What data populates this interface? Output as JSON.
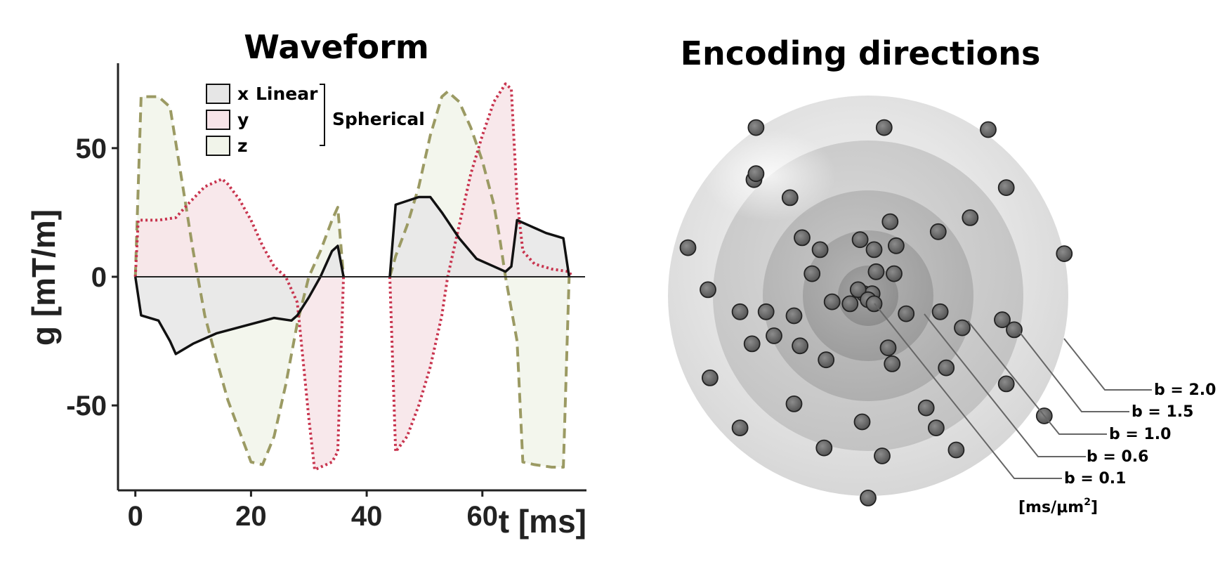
{
  "chart_data": [
    {
      "type": "line",
      "title": "Waveform",
      "xlabel": "t [ms]",
      "ylabel": "g [mT/m]",
      "xlim": [
        -3,
        78
      ],
      "ylim": [
        -83,
        83
      ],
      "xticks": [
        0,
        20,
        40,
        60
      ],
      "yticks": [
        50,
        0,
        -50
      ],
      "xtick_labels": [
        "0",
        "20",
        "40",
        "60"
      ],
      "ytick_labels": [
        "50",
        "0",
        "-50"
      ],
      "zero_line": true,
      "legend": {
        "placement": "top-center",
        "entries": [
          "x",
          "y",
          "z"
        ],
        "group_label_x": "Linear",
        "group_label_all": "Spherical"
      },
      "series": [
        {
          "name": "x",
          "style": "solid",
          "color": "#111111",
          "fill": "#e6e6e6",
          "segments": [
            [
              [
                0,
                0
              ],
              [
                1,
                -15
              ],
              [
                4,
                -17
              ],
              [
                6,
                -25
              ],
              [
                7,
                -30
              ],
              [
                10,
                -26
              ],
              [
                14,
                -22
              ],
              [
                19,
                -19
              ],
              [
                24,
                -16
              ],
              [
                27,
                -17
              ],
              [
                28,
                -15
              ],
              [
                30,
                -8
              ],
              [
                32,
                0
              ],
              [
                34,
                10
              ],
              [
                35,
                12
              ],
              [
                36,
                0
              ]
            ],
            [
              [
                44,
                0
              ],
              [
                45,
                28
              ],
              [
                49,
                31
              ],
              [
                51,
                31
              ],
              [
                53,
                25
              ],
              [
                56,
                15
              ],
              [
                59,
                7
              ],
              [
                62,
                4
              ],
              [
                64,
                2
              ],
              [
                65,
                4
              ],
              [
                66,
                22
              ],
              [
                68,
                20
              ],
              [
                71,
                17
              ],
              [
                74,
                15
              ],
              [
                75,
                0
              ]
            ]
          ]
        },
        {
          "name": "y",
          "style": "dotted",
          "color": "#c8344e",
          "fill": "#f7e4e8",
          "segments": [
            [
              [
                0,
                0
              ],
              [
                0.5,
                22
              ],
              [
                4,
                22
              ],
              [
                7,
                23
              ],
              [
                9,
                28
              ],
              [
                12,
                35
              ],
              [
                15,
                38
              ],
              [
                16,
                36
              ],
              [
                18,
                30
              ],
              [
                20,
                22
              ],
              [
                22,
                12
              ],
              [
                24,
                4
              ],
              [
                26,
                0
              ],
              [
                28,
                -10
              ],
              [
                30,
                -55
              ],
              [
                31,
                -75
              ],
              [
                32,
                -74
              ],
              [
                34,
                -72
              ],
              [
                35,
                -68
              ],
              [
                36,
                0
              ]
            ],
            [
              [
                44,
                0
              ],
              [
                45,
                -68
              ],
              [
                47,
                -62
              ],
              [
                49,
                -50
              ],
              [
                51,
                -35
              ],
              [
                53,
                -15
              ],
              [
                54,
                0
              ],
              [
                56,
                20
              ],
              [
                58,
                40
              ],
              [
                60,
                55
              ],
              [
                62,
                68
              ],
              [
                64,
                75
              ],
              [
                65,
                73
              ],
              [
                66,
                30
              ],
              [
                67,
                10
              ],
              [
                69,
                5
              ],
              [
                72,
                3
              ],
              [
                75,
                2
              ],
              [
                75.5,
                0
              ]
            ]
          ]
        },
        {
          "name": "z",
          "style": "dashed",
          "color": "#9b9a63",
          "fill": "#f1f4ea",
          "segments": [
            [
              [
                0,
                0
              ],
              [
                1,
                70
              ],
              [
                4,
                70
              ],
              [
                6,
                66
              ],
              [
                8,
                38
              ],
              [
                10,
                10
              ],
              [
                12,
                -15
              ],
              [
                14,
                -32
              ],
              [
                16,
                -48
              ],
              [
                18,
                -60
              ],
              [
                20,
                -72
              ],
              [
                22,
                -73
              ],
              [
                24,
                -62
              ],
              [
                26,
                -42
              ],
              [
                28,
                -18
              ],
              [
                30,
                0
              ],
              [
                32,
                10
              ],
              [
                34,
                22
              ],
              [
                35,
                27
              ],
              [
                36,
                0
              ]
            ],
            [
              [
                44,
                0
              ],
              [
                45,
                8
              ],
              [
                47,
                20
              ],
              [
                49,
                35
              ],
              [
                51,
                55
              ],
              [
                53,
                70
              ],
              [
                54,
                72
              ],
              [
                56,
                68
              ],
              [
                58,
                58
              ],
              [
                60,
                45
              ],
              [
                62,
                28
              ],
              [
                63,
                15
              ],
              [
                64,
                0
              ],
              [
                66,
                -25
              ],
              [
                67,
                -72
              ],
              [
                69,
                -73
              ],
              [
                72,
                -74
              ],
              [
                74,
                -74
              ],
              [
                75,
                0
              ]
            ]
          ]
        }
      ]
    },
    {
      "type": "scatter",
      "title": "Encoding directions",
      "shells": [
        "b = 2.0",
        "b = 1.5",
        "b = 1.0",
        "b = 0.6",
        "b = 0.1"
      ],
      "unit_label": "[ms/μm",
      "unit_superscript": "2",
      "unit_close": "]",
      "axis_range": [
        -1,
        1
      ],
      "points": [
        [
          -0.56,
          -0.84
        ],
        [
          0.08,
          -0.84
        ],
        [
          0.6,
          -0.83
        ],
        [
          -0.9,
          -0.24
        ],
        [
          0.98,
          -0.21
        ],
        [
          -0.39,
          -0.49
        ],
        [
          0.35,
          -0.32
        ],
        [
          0.11,
          -0.37
        ],
        [
          -0.57,
          -0.58
        ],
        [
          -0.56,
          -0.61
        ],
        [
          -0.33,
          -0.29
        ],
        [
          0.51,
          -0.39
        ],
        [
          0.69,
          -0.54
        ],
        [
          -0.24,
          -0.23
        ],
        [
          -0.04,
          -0.28
        ],
        [
          0.03,
          -0.23
        ],
        [
          0.14,
          -0.25
        ],
        [
          0.13,
          -0.11
        ],
        [
          0.04,
          -0.12
        ],
        [
          0.19,
          0.09
        ],
        [
          0.36,
          0.08
        ],
        [
          0.47,
          0.16
        ],
        [
          -0.28,
          -0.11
        ],
        [
          -0.37,
          0.1
        ],
        [
          -0.58,
          0.24
        ],
        [
          -0.18,
          0.03
        ],
        [
          0.73,
          0.17
        ],
        [
          -0.8,
          -0.03
        ],
        [
          -0.64,
          0.08
        ],
        [
          -0.51,
          0.08
        ],
        [
          -0.47,
          0.2
        ],
        [
          -0.34,
          0.25
        ],
        [
          -0.09,
          0.04
        ],
        [
          -0.02,
          -0.01
        ],
        [
          0.02,
          -0.01
        ],
        [
          -0.05,
          -0.03
        ],
        [
          0.0,
          0.02
        ],
        [
          0.03,
          0.04
        ],
        [
          0.67,
          0.12
        ],
        [
          0.1,
          0.26
        ],
        [
          0.12,
          0.34
        ],
        [
          0.39,
          0.36
        ],
        [
          -0.21,
          0.32
        ],
        [
          0.29,
          0.56
        ],
        [
          -0.37,
          0.54
        ],
        [
          0.69,
          0.44
        ],
        [
          0.88,
          0.6
        ],
        [
          -0.79,
          0.41
        ],
        [
          -0.64,
          0.66
        ],
        [
          -0.03,
          0.63
        ],
        [
          0.34,
          0.66
        ],
        [
          -0.22,
          0.76
        ],
        [
          0.07,
          0.8
        ],
        [
          0.44,
          0.77
        ],
        [
          0.0,
          1.01
        ]
      ]
    }
  ]
}
